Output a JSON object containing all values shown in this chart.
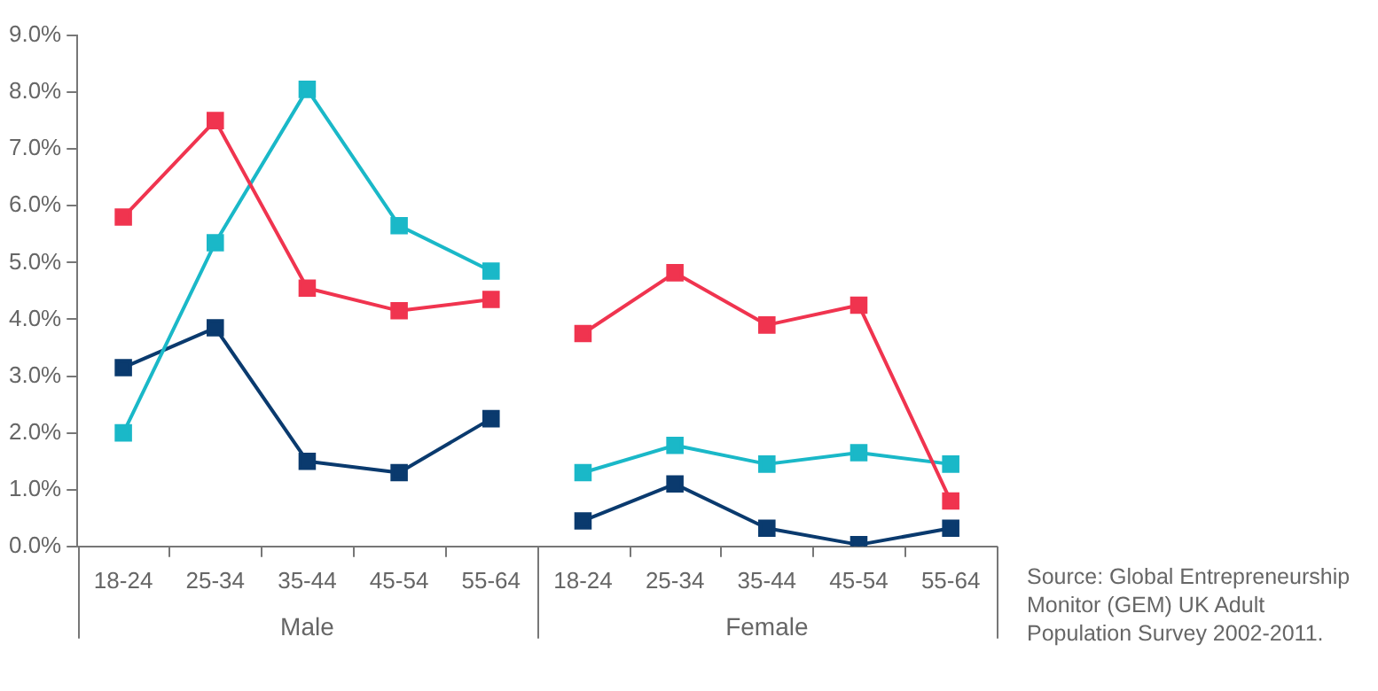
{
  "chart_data": {
    "type": "line",
    "categories": [
      "18-24",
      "25-34",
      "35-44",
      "45-54",
      "55-64",
      "18-24",
      "25-34",
      "35-44",
      "45-54",
      "55-64"
    ],
    "series": [
      {
        "color": "#f0344f",
        "values": [
          5.8,
          7.5,
          4.55,
          4.15,
          4.35,
          null,
          null,
          null,
          null,
          null
        ]
      },
      {
        "color": "#1ab8c8",
        "values": [
          2.0,
          5.35,
          8.05,
          5.65,
          4.85,
          null,
          null,
          null,
          null,
          null
        ]
      },
      {
        "color": "#0a3a6e",
        "values": [
          3.15,
          3.85,
          1.5,
          1.3,
          2.25,
          null,
          null,
          null,
          null,
          null
        ]
      },
      {
        "color": "#f0344f",
        "values": [
          null,
          null,
          null,
          null,
          null,
          3.75,
          4.82,
          3.9,
          4.25,
          0.8
        ]
      },
      {
        "color": "#1ab8c8",
        "values": [
          null,
          null,
          null,
          null,
          null,
          1.3,
          1.78,
          1.45,
          1.65,
          1.45
        ]
      },
      {
        "color": "#0a3a6e",
        "values": [
          null,
          null,
          null,
          null,
          null,
          0.45,
          1.1,
          0.32,
          0.03,
          0.32
        ]
      }
    ],
    "ylim": [
      0,
      9
    ],
    "yticks": [
      {
        "value": 0,
        "label": "0.0%"
      },
      {
        "value": 1,
        "label": "1.0%"
      },
      {
        "value": 2,
        "label": "2.0%"
      },
      {
        "value": 3,
        "label": "3.0%"
      },
      {
        "value": 4,
        "label": "4.0%"
      },
      {
        "value": 5,
        "label": "5.0%"
      },
      {
        "value": 6,
        "label": "6.0%"
      },
      {
        "value": 7,
        "label": "7.0%"
      },
      {
        "value": 8,
        "label": "8.0%"
      },
      {
        "value": 9,
        "label": "9.0%"
      }
    ],
    "annotations": [
      "Male",
      "Female",
      "Source: Global Entrepreneurship Monitor (GEM) UK Adult Population Survey 2002-2011."
    ],
    "grid": false,
    "legend": false,
    "marker": "square",
    "line_style": "solid"
  }
}
